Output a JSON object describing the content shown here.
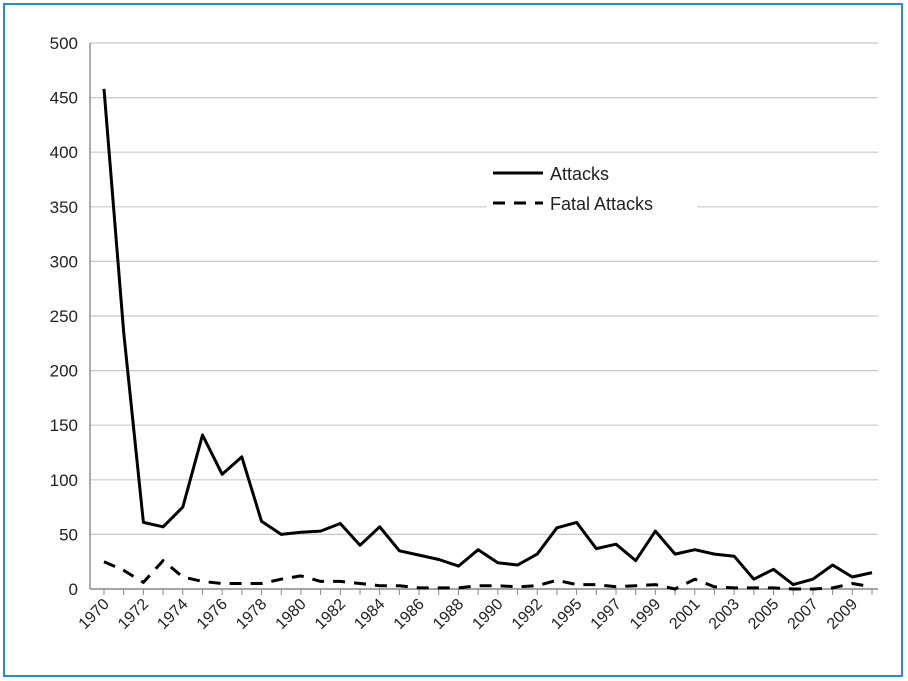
{
  "chart_data": {
    "type": "line",
    "title": "",
    "xlabel": "",
    "ylabel": "",
    "ylim": [
      0,
      500
    ],
    "y_ticks": [
      0,
      50,
      100,
      150,
      200,
      250,
      300,
      350,
      400,
      450,
      500
    ],
    "grid": true,
    "legend_position": "top-center",
    "categories": [
      "1970",
      "1971",
      "1972",
      "1973",
      "1974",
      "1975",
      "1976",
      "1977",
      "1978",
      "1979",
      "1980",
      "1981",
      "1982",
      "1983",
      "1984",
      "1985",
      "1986",
      "1987",
      "1988",
      "1989",
      "1990",
      "1991",
      "1992",
      "1993",
      "1995",
      "1996",
      "1997",
      "1998",
      "1999",
      "2000",
      "2001",
      "2002",
      "2003",
      "2004",
      "2005",
      "2006",
      "2007",
      "2008",
      "2009",
      "2010"
    ],
    "x_tick_labels": [
      "1970",
      "1972",
      "1974",
      "1976",
      "1978",
      "1980",
      "1982",
      "1984",
      "1986",
      "1988",
      "1990",
      "1992",
      "1995",
      "1997",
      "1999",
      "2001",
      "2003",
      "2005",
      "2007",
      "2009"
    ],
    "series": [
      {
        "name": "Attacks",
        "style": "solid",
        "color": "#000000",
        "values": [
          458,
          235,
          61,
          57,
          75,
          141,
          105,
          121,
          62,
          50,
          52,
          53,
          60,
          40,
          57,
          35,
          31,
          27,
          21,
          36,
          24,
          22,
          32,
          56,
          61,
          37,
          41,
          26,
          53,
          32,
          36,
          32,
          30,
          9,
          18,
          4,
          9,
          22,
          11,
          15
        ]
      },
      {
        "name": "Fatal Attacks",
        "style": "dashed",
        "color": "#000000",
        "values": [
          25,
          17,
          6,
          26,
          11,
          7,
          5,
          5,
          5,
          9,
          12,
          7,
          7,
          5,
          3,
          3,
          1,
          1,
          1,
          3,
          3,
          2,
          3,
          8,
          4,
          4,
          2,
          3,
          4,
          0,
          9,
          2,
          1,
          1,
          1,
          0,
          0,
          1,
          5,
          2
        ]
      }
    ]
  }
}
